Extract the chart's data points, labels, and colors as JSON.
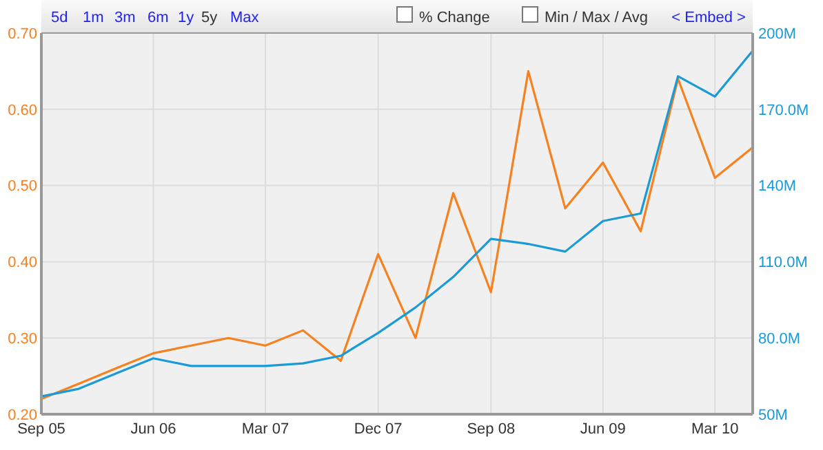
{
  "chart_data": {
    "type": "line",
    "x": [
      "2005-09",
      "2005-12",
      "2006-03",
      "2006-06",
      "2006-09",
      "2006-12",
      "2007-03",
      "2007-06",
      "2007-09",
      "2007-12",
      "2008-03",
      "2008-06",
      "2008-09",
      "2008-12",
      "2009-03",
      "2009-06",
      "2009-09",
      "2009-12",
      "2010-03",
      "2010-06"
    ],
    "series": [
      {
        "color": "#f7801f",
        "values": [
          0.22,
          0.24,
          0.26,
          0.28,
          0.29,
          0.3,
          0.29,
          0.31,
          0.27,
          0.41,
          0.3,
          0.49,
          0.36,
          0.65,
          0.47,
          0.53,
          0.44,
          0.64,
          0.51,
          0.55
        ]
      },
      {
        "color": "#1a9ad6",
        "axis": "y2",
        "values": [
          57,
          60,
          66,
          72,
          69,
          69,
          69,
          70,
          73,
          82,
          92,
          104,
          119,
          117,
          114,
          126,
          129,
          183,
          175,
          193
        ]
      }
    ],
    "xlim": [
      "2005-09",
      "2010-06"
    ],
    "xticks": [
      {
        "value": "2005-09",
        "label": "Sep 05"
      },
      {
        "value": "2006-06",
        "label": "Jun 06"
      },
      {
        "value": "2007-03",
        "label": "Mar 07"
      },
      {
        "value": "2007-12",
        "label": "Dec 07"
      },
      {
        "value": "2008-09",
        "label": "Sep 08"
      },
      {
        "value": "2009-06",
        "label": "Jun 09"
      },
      {
        "value": "2010-03",
        "label": "Mar 10"
      }
    ],
    "ylim": [
      0.2,
      0.7
    ],
    "yticks": [
      {
        "value": 0.2,
        "label": "0.20"
      },
      {
        "value": 0.3,
        "label": "0.30"
      },
      {
        "value": 0.4,
        "label": "0.40"
      },
      {
        "value": 0.5,
        "label": "0.50"
      },
      {
        "value": 0.6,
        "label": "0.60"
      },
      {
        "value": 0.7,
        "label": "0.70"
      }
    ],
    "y2lim": [
      50,
      200
    ],
    "y2ticks": [
      {
        "value": 50,
        "label": "50M"
      },
      {
        "value": 80,
        "label": "80.0M"
      },
      {
        "value": 110,
        "label": "110.0M"
      },
      {
        "value": 140,
        "label": "140M"
      },
      {
        "value": 170,
        "label": "170.0M"
      },
      {
        "value": 200,
        "label": "200M"
      }
    ],
    "grid": true,
    "marker": "none",
    "line_style": "solid",
    "annotations": [
      "5d",
      "1m",
      "3m",
      "6m",
      "1y",
      "5y",
      "Max",
      "% Change",
      "Min / Max / Avg",
      "< Embed >"
    ]
  }
}
